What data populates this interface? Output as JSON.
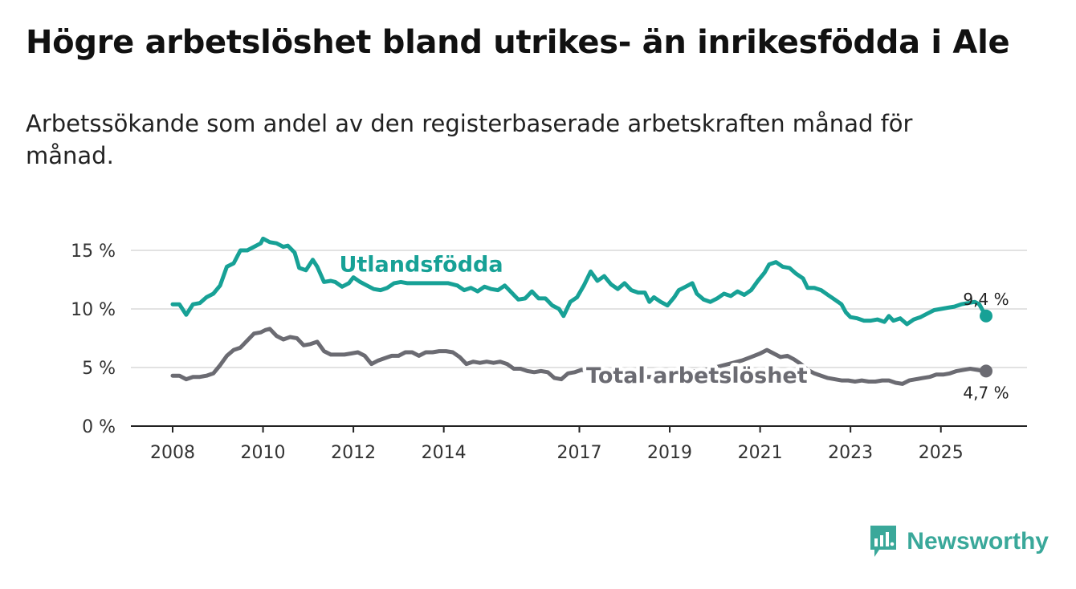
{
  "title": "Högre arbetslöshet bland utrikes- än inrikesfödda i Ale",
  "subtitle": "Arbetssökande som andel av den registerbaserade arbetskraften månad för månad.",
  "brand": {
    "name": "Newsworthy",
    "color": "#3aa89a"
  },
  "chart_data": {
    "type": "line",
    "title": "Högre arbetslöshet bland utrikes- än inrikesfödda i Ale",
    "xlabel": "",
    "ylabel": "",
    "xlim": [
      2008.0,
      2026.0
    ],
    "ylim": [
      0,
      16
    ],
    "y_ticks": [
      0,
      5,
      10,
      15
    ],
    "y_tick_labels": [
      "0 %",
      "5 %",
      "10 %",
      "15 %"
    ],
    "x_ticks": [
      2008,
      2010,
      2012,
      2014,
      2017,
      2019,
      2021,
      2023,
      2025
    ],
    "x_tick_labels": [
      "2008",
      "2010",
      "2012",
      "2014",
      "2017",
      "2019",
      "2021",
      "2023",
      "2025"
    ],
    "grid": "horizontal",
    "series": [
      {
        "name": "Utlandsfödda",
        "label": "Utlandsfödda",
        "color": "#17a196",
        "end_label": "9,4 %",
        "points": [
          [
            2008.0,
            10.4
          ],
          [
            2008.15,
            10.4
          ],
          [
            2008.3,
            9.5
          ],
          [
            2008.45,
            10.4
          ],
          [
            2008.6,
            10.5
          ],
          [
            2008.75,
            11.0
          ],
          [
            2008.9,
            11.3
          ],
          [
            2009.05,
            12.0
          ],
          [
            2009.2,
            13.6
          ],
          [
            2009.35,
            13.9
          ],
          [
            2009.5,
            15.0
          ],
          [
            2009.65,
            15.0
          ],
          [
            2009.8,
            15.3
          ],
          [
            2009.95,
            15.6
          ],
          [
            2010.0,
            16.0
          ],
          [
            2010.15,
            15.7
          ],
          [
            2010.3,
            15.6
          ],
          [
            2010.45,
            15.3
          ],
          [
            2010.55,
            15.4
          ],
          [
            2010.7,
            14.8
          ],
          [
            2010.8,
            13.5
          ],
          [
            2010.95,
            13.3
          ],
          [
            2011.1,
            14.2
          ],
          [
            2011.2,
            13.6
          ],
          [
            2011.35,
            12.3
          ],
          [
            2011.5,
            12.4
          ],
          [
            2011.6,
            12.3
          ],
          [
            2011.75,
            11.9
          ],
          [
            2011.9,
            12.2
          ],
          [
            2012.0,
            12.7
          ],
          [
            2012.15,
            12.3
          ],
          [
            2012.3,
            12.0
          ],
          [
            2012.45,
            11.7
          ],
          [
            2012.6,
            11.6
          ],
          [
            2012.75,
            11.8
          ],
          [
            2012.9,
            12.2
          ],
          [
            2013.05,
            12.3
          ],
          [
            2013.2,
            12.2
          ],
          [
            2013.5,
            12.2
          ],
          [
            2013.8,
            12.2
          ],
          [
            2014.1,
            12.2
          ],
          [
            2014.3,
            12.0
          ],
          [
            2014.45,
            11.6
          ],
          [
            2014.6,
            11.8
          ],
          [
            2014.75,
            11.5
          ],
          [
            2014.9,
            11.9
          ],
          [
            2015.05,
            11.7
          ],
          [
            2015.2,
            11.6
          ],
          [
            2015.35,
            12.0
          ],
          [
            2015.5,
            11.4
          ],
          [
            2015.65,
            10.8
          ],
          [
            2015.8,
            10.9
          ],
          [
            2015.95,
            11.5
          ],
          [
            2016.1,
            10.9
          ],
          [
            2016.25,
            10.9
          ],
          [
            2016.4,
            10.3
          ],
          [
            2016.55,
            10.0
          ],
          [
            2016.65,
            9.4
          ],
          [
            2016.8,
            10.6
          ],
          [
            2016.95,
            11.0
          ],
          [
            2017.1,
            12.0
          ],
          [
            2017.25,
            13.2
          ],
          [
            2017.4,
            12.4
          ],
          [
            2017.55,
            12.8
          ],
          [
            2017.7,
            12.1
          ],
          [
            2017.85,
            11.7
          ],
          [
            2018.0,
            12.2
          ],
          [
            2018.15,
            11.6
          ],
          [
            2018.3,
            11.4
          ],
          [
            2018.45,
            11.4
          ],
          [
            2018.55,
            10.6
          ],
          [
            2018.65,
            11.0
          ],
          [
            2018.8,
            10.6
          ],
          [
            2018.95,
            10.3
          ],
          [
            2019.1,
            11.0
          ],
          [
            2019.2,
            11.6
          ],
          [
            2019.35,
            11.9
          ],
          [
            2019.5,
            12.2
          ],
          [
            2019.6,
            11.3
          ],
          [
            2019.75,
            10.8
          ],
          [
            2019.9,
            10.6
          ],
          [
            2020.05,
            10.9
          ],
          [
            2020.2,
            11.3
          ],
          [
            2020.35,
            11.1
          ],
          [
            2020.5,
            11.5
          ],
          [
            2020.65,
            11.2
          ],
          [
            2020.8,
            11.6
          ],
          [
            2020.95,
            12.4
          ],
          [
            2021.1,
            13.1
          ],
          [
            2021.2,
            13.8
          ],
          [
            2021.35,
            14.0
          ],
          [
            2021.5,
            13.6
          ],
          [
            2021.65,
            13.5
          ],
          [
            2021.8,
            13.0
          ],
          [
            2021.95,
            12.6
          ],
          [
            2022.05,
            11.8
          ],
          [
            2022.2,
            11.8
          ],
          [
            2022.35,
            11.6
          ],
          [
            2022.5,
            11.2
          ],
          [
            2022.65,
            10.8
          ],
          [
            2022.8,
            10.4
          ],
          [
            2022.9,
            9.7
          ],
          [
            2023.0,
            9.3
          ],
          [
            2023.15,
            9.2
          ],
          [
            2023.3,
            9.0
          ],
          [
            2023.45,
            9.0
          ],
          [
            2023.6,
            9.1
          ],
          [
            2023.75,
            8.9
          ],
          [
            2023.85,
            9.4
          ],
          [
            2023.95,
            9.0
          ],
          [
            2024.1,
            9.2
          ],
          [
            2024.25,
            8.7
          ],
          [
            2024.4,
            9.1
          ],
          [
            2024.55,
            9.3
          ],
          [
            2024.7,
            9.6
          ],
          [
            2024.85,
            9.9
          ],
          [
            2025.0,
            10.0
          ],
          [
            2025.15,
            10.1
          ],
          [
            2025.3,
            10.2
          ],
          [
            2025.45,
            10.4
          ],
          [
            2025.6,
            10.5
          ],
          [
            2025.75,
            10.6
          ],
          [
            2025.85,
            10.4
          ],
          [
            2025.95,
            9.7
          ],
          [
            2026.0,
            9.4
          ]
        ]
      },
      {
        "name": "Total arbetslöshet",
        "label": "Total arbetslöshet",
        "color": "#6b6b72",
        "end_label": "4,7 %",
        "points": [
          [
            2008.0,
            4.3
          ],
          [
            2008.15,
            4.3
          ],
          [
            2008.3,
            4.0
          ],
          [
            2008.45,
            4.2
          ],
          [
            2008.6,
            4.2
          ],
          [
            2008.75,
            4.3
          ],
          [
            2008.9,
            4.5
          ],
          [
            2009.05,
            5.2
          ],
          [
            2009.2,
            6.0
          ],
          [
            2009.35,
            6.5
          ],
          [
            2009.5,
            6.7
          ],
          [
            2009.65,
            7.3
          ],
          [
            2009.8,
            7.9
          ],
          [
            2009.95,
            8.0
          ],
          [
            2010.05,
            8.2
          ],
          [
            2010.15,
            8.3
          ],
          [
            2010.3,
            7.7
          ],
          [
            2010.45,
            7.4
          ],
          [
            2010.6,
            7.6
          ],
          [
            2010.75,
            7.5
          ],
          [
            2010.9,
            6.9
          ],
          [
            2011.05,
            7.0
          ],
          [
            2011.2,
            7.2
          ],
          [
            2011.35,
            6.4
          ],
          [
            2011.5,
            6.1
          ],
          [
            2011.65,
            6.1
          ],
          [
            2011.8,
            6.1
          ],
          [
            2011.95,
            6.2
          ],
          [
            2012.1,
            6.3
          ],
          [
            2012.25,
            6.0
          ],
          [
            2012.4,
            5.3
          ],
          [
            2012.55,
            5.6
          ],
          [
            2012.7,
            5.8
          ],
          [
            2012.85,
            6.0
          ],
          [
            2013.0,
            6.0
          ],
          [
            2013.15,
            6.3
          ],
          [
            2013.3,
            6.3
          ],
          [
            2013.45,
            6.0
          ],
          [
            2013.6,
            6.3
          ],
          [
            2013.75,
            6.3
          ],
          [
            2013.9,
            6.4
          ],
          [
            2014.05,
            6.4
          ],
          [
            2014.2,
            6.3
          ],
          [
            2014.35,
            5.9
          ],
          [
            2014.5,
            5.3
          ],
          [
            2014.65,
            5.5
          ],
          [
            2014.8,
            5.4
          ],
          [
            2014.95,
            5.5
          ],
          [
            2015.1,
            5.4
          ],
          [
            2015.25,
            5.5
          ],
          [
            2015.4,
            5.3
          ],
          [
            2015.55,
            4.9
          ],
          [
            2015.7,
            4.9
          ],
          [
            2015.85,
            4.7
          ],
          [
            2016.0,
            4.6
          ],
          [
            2016.15,
            4.7
          ],
          [
            2016.3,
            4.6
          ],
          [
            2016.45,
            4.1
          ],
          [
            2016.6,
            4.0
          ],
          [
            2016.75,
            4.5
          ],
          [
            2016.9,
            4.6
          ],
          [
            2017.05,
            4.8
          ],
          [
            2017.2,
            4.7
          ],
          [
            2017.35,
            4.5
          ],
          [
            2017.5,
            4.4
          ],
          [
            2017.65,
            4.2
          ],
          [
            2017.8,
            4.3
          ],
          [
            2018.0,
            4.3
          ],
          [
            2018.2,
            4.3
          ],
          [
            2018.4,
            4.2
          ],
          [
            2018.6,
            4.2
          ],
          [
            2018.8,
            4.2
          ],
          [
            2019.0,
            4.3
          ],
          [
            2019.2,
            4.5
          ],
          [
            2019.4,
            4.6
          ],
          [
            2019.6,
            4.7
          ],
          [
            2019.8,
            4.8
          ],
          [
            2020.0,
            5.0
          ],
          [
            2020.2,
            5.2
          ],
          [
            2020.4,
            5.4
          ],
          [
            2020.6,
            5.6
          ],
          [
            2020.8,
            5.9
          ],
          [
            2021.0,
            6.2
          ],
          [
            2021.15,
            6.5
          ],
          [
            2021.3,
            6.2
          ],
          [
            2021.45,
            5.9
          ],
          [
            2021.6,
            6.0
          ],
          [
            2021.75,
            5.7
          ],
          [
            2021.9,
            5.3
          ],
          [
            2022.05,
            4.8
          ],
          [
            2022.2,
            4.5
          ],
          [
            2022.35,
            4.3
          ],
          [
            2022.5,
            4.1
          ],
          [
            2022.65,
            4.0
          ],
          [
            2022.8,
            3.9
          ],
          [
            2022.95,
            3.9
          ],
          [
            2023.1,
            3.8
          ],
          [
            2023.25,
            3.9
          ],
          [
            2023.4,
            3.8
          ],
          [
            2023.55,
            3.8
          ],
          [
            2023.7,
            3.9
          ],
          [
            2023.85,
            3.9
          ],
          [
            2024.0,
            3.7
          ],
          [
            2024.15,
            3.6
          ],
          [
            2024.3,
            3.9
          ],
          [
            2024.45,
            4.0
          ],
          [
            2024.6,
            4.1
          ],
          [
            2024.75,
            4.2
          ],
          [
            2024.9,
            4.4
          ],
          [
            2025.05,
            4.4
          ],
          [
            2025.2,
            4.5
          ],
          [
            2025.35,
            4.7
          ],
          [
            2025.5,
            4.8
          ],
          [
            2025.65,
            4.9
          ],
          [
            2025.8,
            4.8
          ],
          [
            2025.95,
            4.7
          ],
          [
            2026.0,
            4.7
          ]
        ]
      }
    ]
  }
}
